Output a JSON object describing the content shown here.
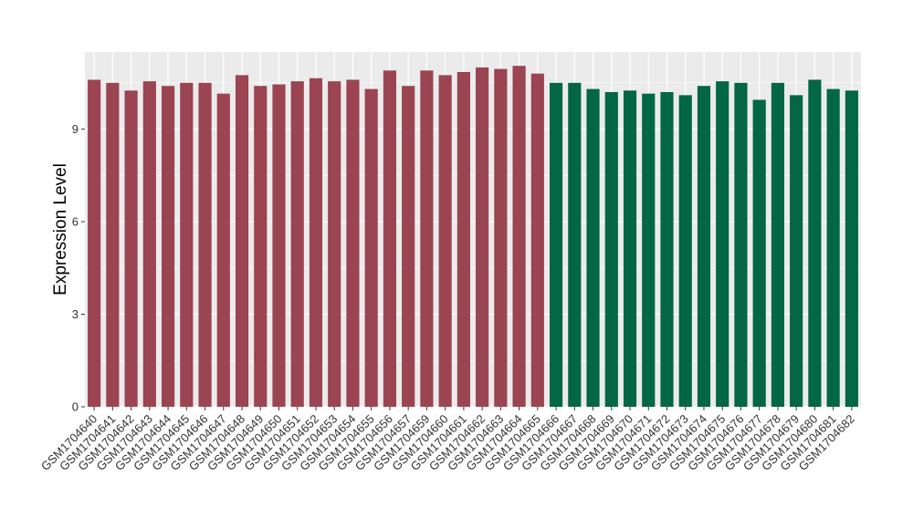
{
  "chart_data": {
    "type": "bar",
    "title": "",
    "xlabel": "",
    "ylabel": "Expression Level",
    "ylim": [
      0,
      11.5
    ],
    "yticks": [
      0,
      3,
      6,
      9
    ],
    "grid": true,
    "legend": "none",
    "colors": {
      "group1": "#9b4452",
      "group2": "#036645",
      "panel": "#ebebeb",
      "gridline": "#ffffff"
    },
    "categories": [
      "GSM1704640",
      "GSM1704641",
      "GSM1704642",
      "GSM1704643",
      "GSM1704644",
      "GSM1704645",
      "GSM1704646",
      "GSM1704647",
      "GSM1704648",
      "GSM1704649",
      "GSM1704650",
      "GSM1704651",
      "GSM1704652",
      "GSM1704653",
      "GSM1704654",
      "GSM1704655",
      "GSM1704656",
      "GSM1704657",
      "GSM1704659",
      "GSM1704660",
      "GSM1704661",
      "GSM1704662",
      "GSM1704663",
      "GSM1704664",
      "GSM1704665",
      "GSM1704666",
      "GSM1704667",
      "GSM1704668",
      "GSM1704669",
      "GSM1704670",
      "GSM1704671",
      "GSM1704672",
      "GSM1704673",
      "GSM1704674",
      "GSM1704675",
      "GSM1704676",
      "GSM1704677",
      "GSM1704678",
      "GSM1704679",
      "GSM1704680",
      "GSM1704681",
      "GSM1704682"
    ],
    "values": [
      10.6,
      10.5,
      10.25,
      10.55,
      10.4,
      10.5,
      10.5,
      10.15,
      10.75,
      10.4,
      10.45,
      10.55,
      10.65,
      10.55,
      10.6,
      10.3,
      10.9,
      10.4,
      10.9,
      10.75,
      10.85,
      11.0,
      10.95,
      11.05,
      10.8,
      10.5,
      10.5,
      10.3,
      10.2,
      10.25,
      10.15,
      10.2,
      10.1,
      10.4,
      10.55,
      10.5,
      9.95,
      10.5,
      10.1,
      10.6,
      10.3,
      10.25
    ],
    "groups": [
      1,
      1,
      1,
      1,
      1,
      1,
      1,
      1,
      1,
      1,
      1,
      1,
      1,
      1,
      1,
      1,
      1,
      1,
      1,
      1,
      1,
      1,
      1,
      1,
      1,
      2,
      2,
      2,
      2,
      2,
      2,
      2,
      2,
      2,
      2,
      2,
      2,
      2,
      2,
      2,
      2,
      2
    ]
  }
}
